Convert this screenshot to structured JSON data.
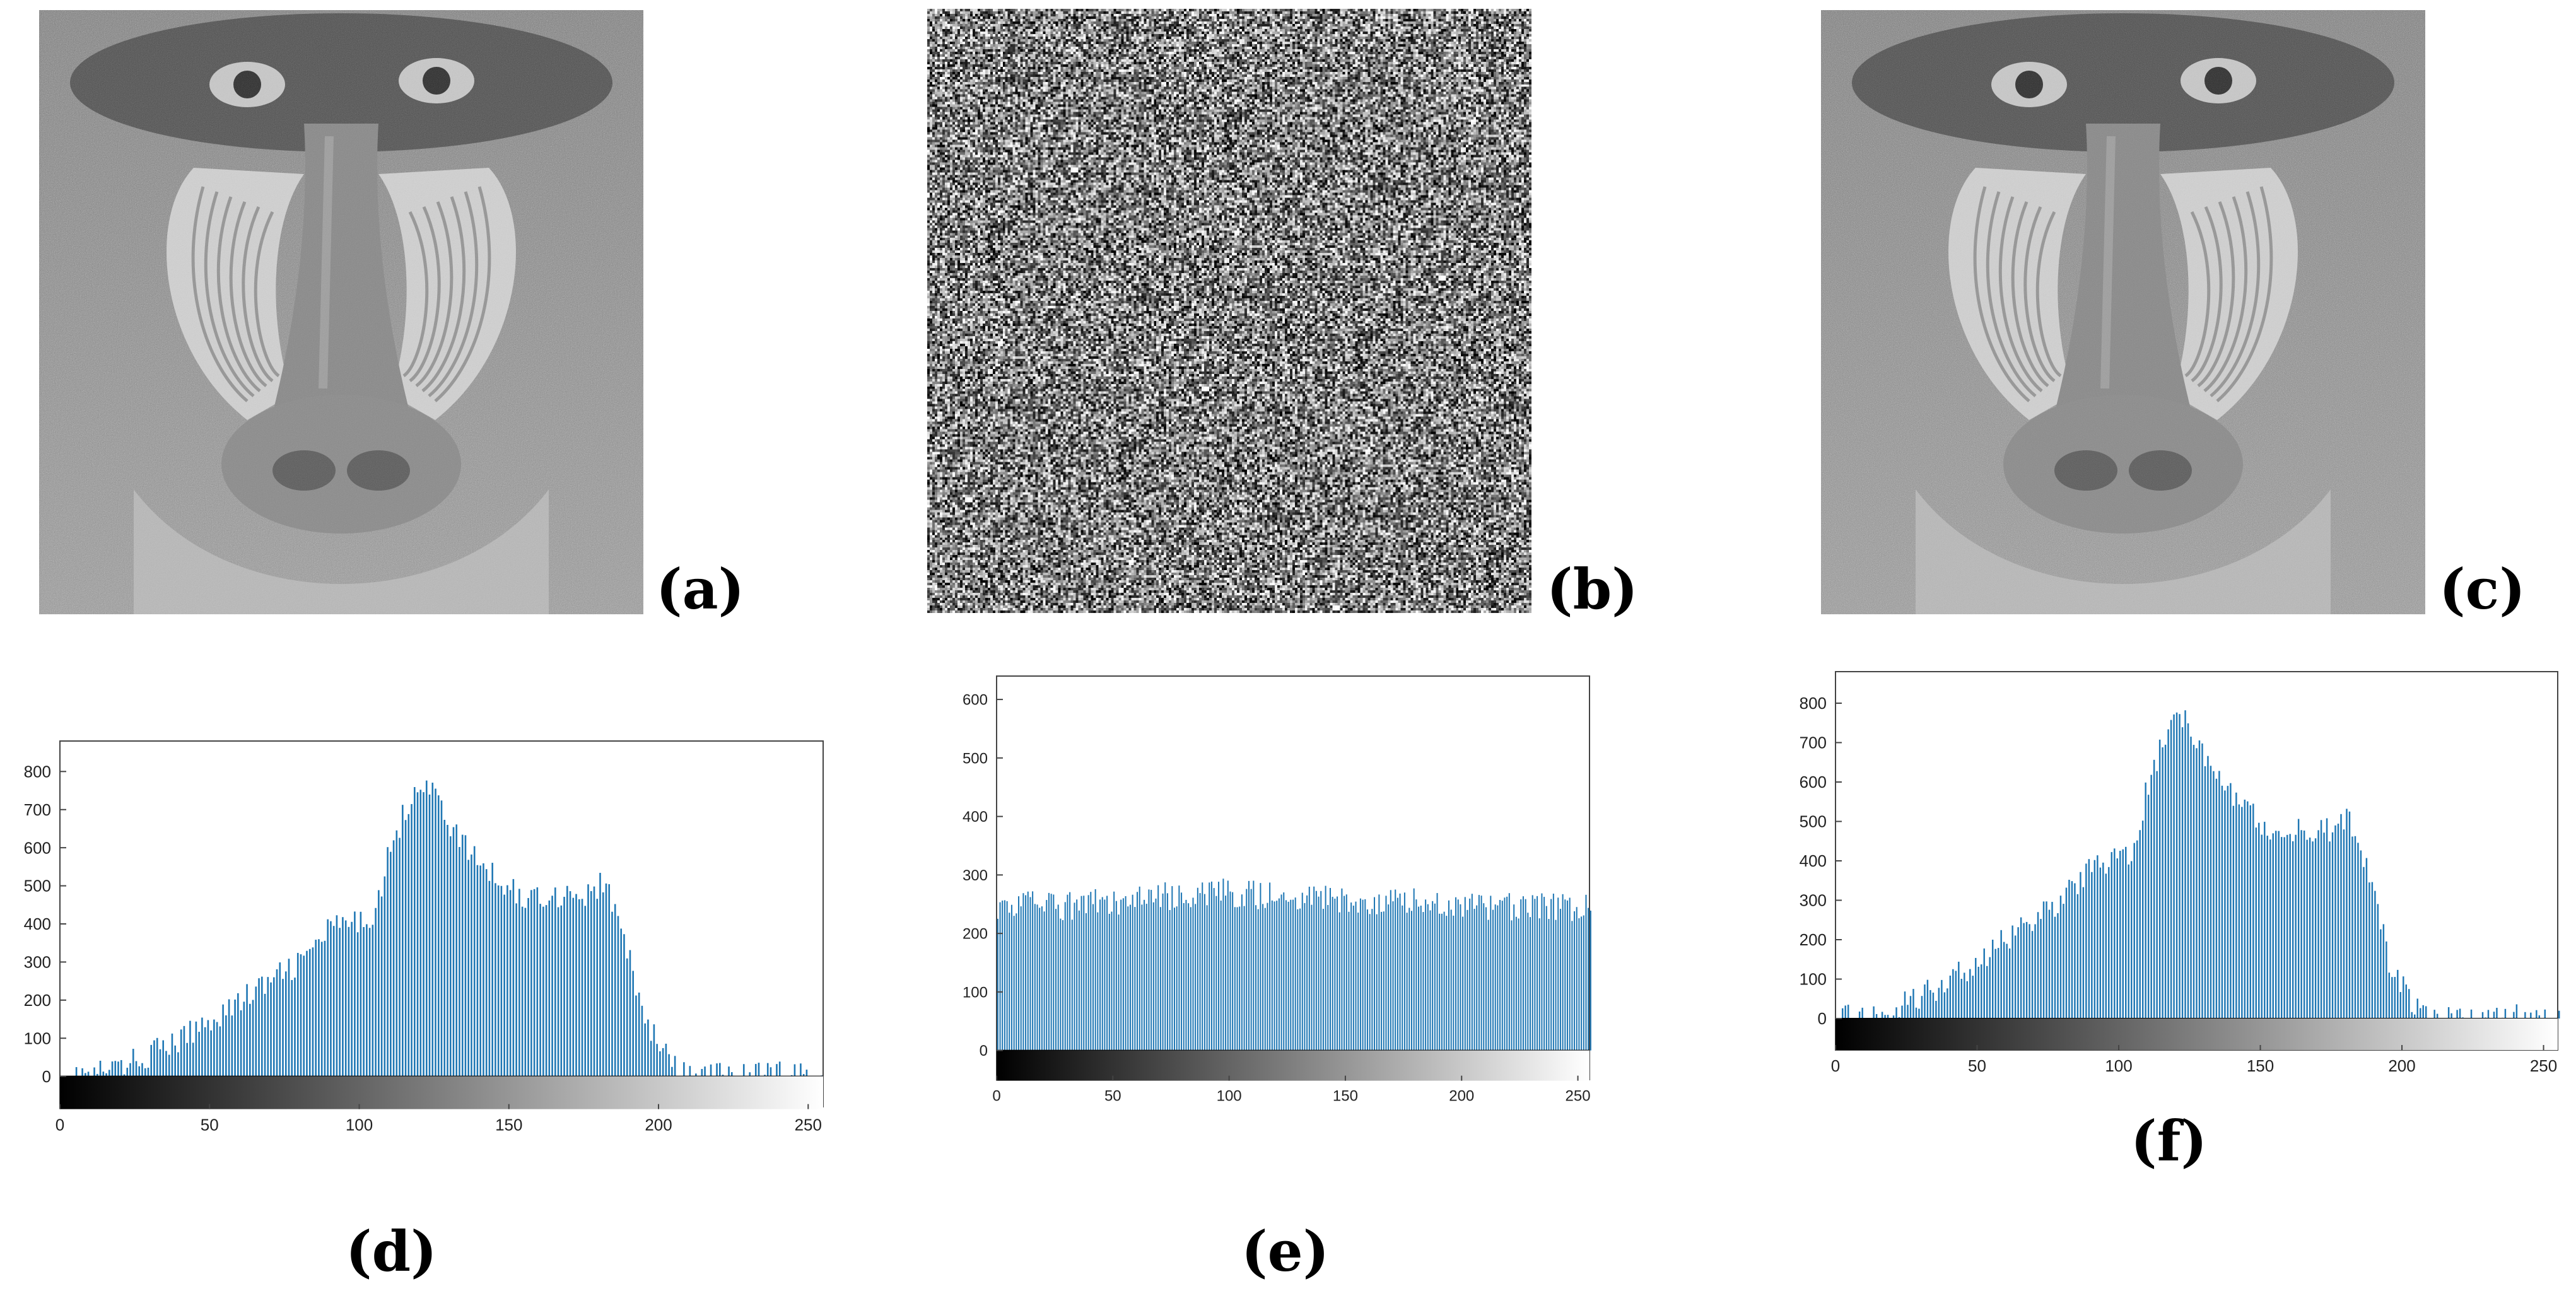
{
  "figure": {
    "panel_labels": [
      "(a)",
      "(b)",
      "(c)",
      "(d)",
      "(e)",
      "(f)"
    ],
    "panels": [
      {
        "label": "(a)",
        "content": "photo"
      },
      {
        "label": "(b)",
        "content": "noise"
      },
      {
        "label": "(c)",
        "content": "photo"
      }
    ]
  },
  "chart_data": [
    {
      "type": "bar",
      "panel": "(d)",
      "title": "",
      "xlabel": "",
      "ylabel": "",
      "xlim": [
        0,
        255
      ],
      "ylim": [
        -80,
        880
      ],
      "xticks": [
        0,
        50,
        100,
        150,
        200,
        250
      ],
      "yticks": [
        0,
        100,
        200,
        300,
        400,
        500,
        600,
        700,
        800
      ],
      "colorbar": "grayscale 0-255",
      "bar_color": "#1f77b4",
      "x": [
        0,
        10,
        20,
        30,
        40,
        50,
        60,
        70,
        80,
        90,
        100,
        105,
        110,
        115,
        118,
        120,
        122,
        125,
        130,
        135,
        140,
        145,
        150,
        155,
        160,
        165,
        170,
        175,
        180,
        183,
        185,
        190,
        195,
        200,
        205,
        208
      ],
      "values": [
        0,
        5,
        25,
        60,
        95,
        150,
        200,
        250,
        300,
        390,
        400,
        440,
        600,
        700,
        760,
        775,
        760,
        740,
        660,
        600,
        560,
        520,
        500,
        460,
        480,
        470,
        490,
        470,
        500,
        490,
        430,
        300,
        150,
        80,
        20,
        5
      ]
    },
    {
      "type": "bar",
      "panel": "(e)",
      "title": "",
      "xlabel": "",
      "ylabel": "",
      "xlim": [
        0,
        255
      ],
      "ylim": [
        -50,
        640
      ],
      "xticks": [
        0,
        50,
        100,
        150,
        200,
        250
      ],
      "yticks": [
        0,
        100,
        200,
        300,
        400,
        500,
        600
      ],
      "colorbar": "grayscale 0-255",
      "bar_color": "#1f77b4",
      "x": [
        0,
        25,
        50,
        75,
        100,
        125,
        150,
        175,
        200,
        225,
        255
      ],
      "values": [
        250,
        245,
        255,
        265,
        270,
        260,
        255,
        255,
        245,
        245,
        245
      ]
    },
    {
      "type": "bar",
      "panel": "(f)",
      "title": "",
      "xlabel": "",
      "ylabel": "",
      "xlim": [
        0,
        255
      ],
      "ylim": [
        -80,
        880
      ],
      "xticks": [
        0,
        50,
        100,
        150,
        200,
        250
      ],
      "yticks": [
        0,
        100,
        200,
        300,
        400,
        500,
        600,
        700,
        800
      ],
      "colorbar": "grayscale 0-255",
      "bar_color": "#1f77b4",
      "x": [
        0,
        10,
        20,
        30,
        40,
        50,
        60,
        70,
        80,
        90,
        100,
        105,
        110,
        115,
        118,
        120,
        122,
        125,
        130,
        135,
        140,
        145,
        150,
        155,
        160,
        165,
        170,
        175,
        180,
        183,
        185,
        190,
        195,
        200,
        205,
        208
      ],
      "values": [
        0,
        5,
        25,
        60,
        95,
        150,
        200,
        250,
        300,
        390,
        400,
        440,
        600,
        700,
        760,
        775,
        760,
        740,
        660,
        600,
        560,
        520,
        500,
        460,
        480,
        470,
        490,
        470,
        500,
        490,
        430,
        300,
        150,
        80,
        20,
        5
      ]
    }
  ]
}
